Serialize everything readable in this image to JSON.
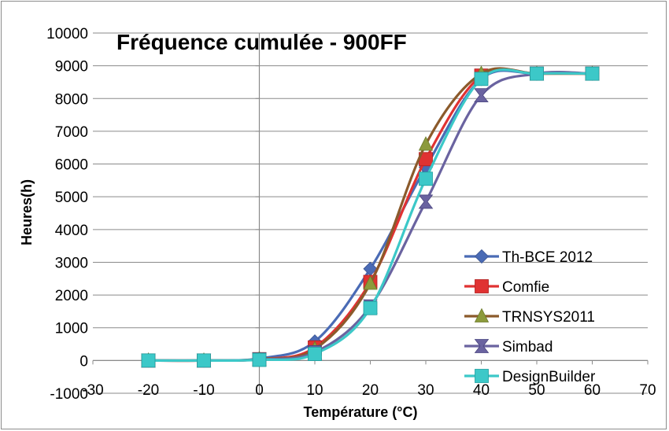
{
  "chart_data": {
    "type": "line",
    "title": "Fréquence cumulée - 900FF",
    "xlabel": "Température (°C)",
    "ylabel": "Heures(h)",
    "xlim": [
      -30,
      70
    ],
    "ylim": [
      -1000,
      10000
    ],
    "x_ticks": [
      "-30",
      "-20",
      "-10",
      "0",
      "10",
      "20",
      "30",
      "40",
      "50",
      "60",
      "70"
    ],
    "y_ticks": [
      "-1000",
      "0",
      "1000",
      "2000",
      "3000",
      "4000",
      "5000",
      "6000",
      "7000",
      "8000",
      "9000",
      "10000"
    ],
    "grid": "horizontal",
    "legend_position": "right",
    "x": [
      -20,
      -10,
      0,
      10,
      20,
      30,
      40,
      50,
      60
    ],
    "series": [
      {
        "name": "Th-BCE 2012",
        "marker": "diamond",
        "color": "#4a6bb5",
        "values": [
          0,
          0,
          60,
          580,
          2800,
          5900,
          8600,
          8760,
          8760
        ]
      },
      {
        "name": "Comfie",
        "marker": "square",
        "color": "#e03232",
        "values": [
          0,
          0,
          40,
          400,
          2400,
          6150,
          8700,
          8760,
          8760
        ]
      },
      {
        "name": "TRNSYS2011",
        "marker": "triangle",
        "color": "#8c9a3c",
        "line_color": "#8b5a2b",
        "values": [
          0,
          0,
          40,
          350,
          2350,
          6600,
          8760,
          8760,
          8760
        ]
      },
      {
        "name": "Simbad",
        "marker": "hourglass",
        "color": "#6a63a0",
        "values": [
          0,
          0,
          30,
          250,
          1650,
          4850,
          8100,
          8760,
          8760
        ]
      },
      {
        "name": "DesignBuilder",
        "marker": "asterisk-square",
        "color": "#3cc8c8",
        "values": [
          0,
          0,
          20,
          200,
          1600,
          5550,
          8600,
          8760,
          8760
        ]
      }
    ]
  }
}
